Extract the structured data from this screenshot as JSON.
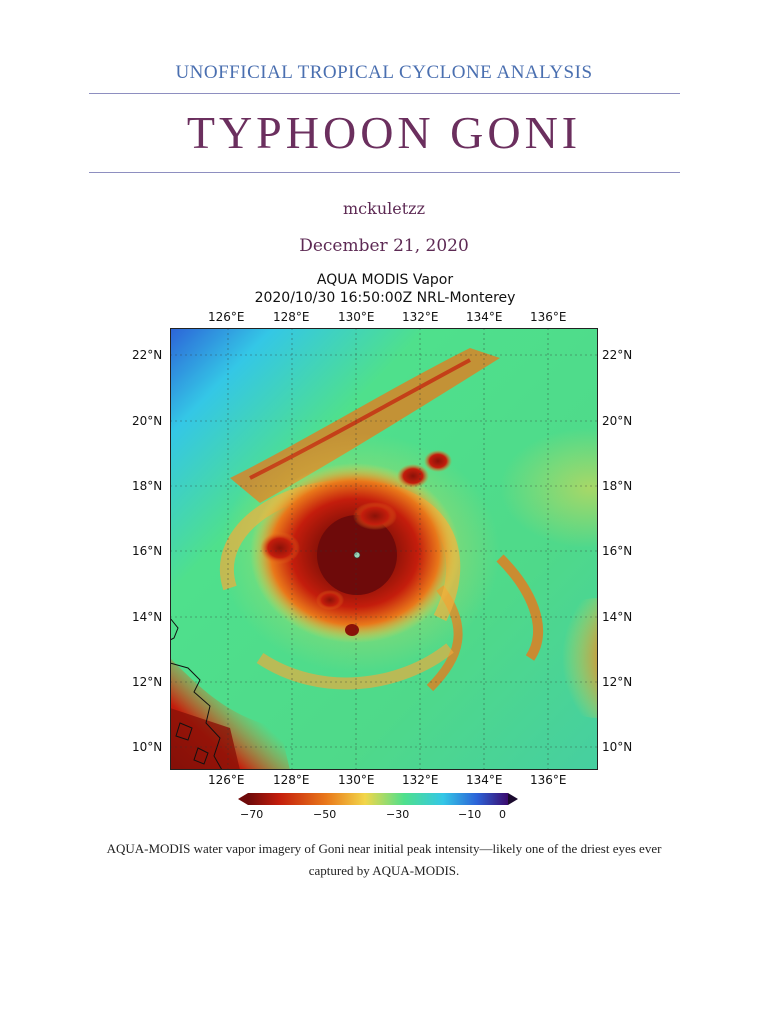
{
  "header": {
    "kicker": "UNOFFICIAL TROPICAL CYCLONE ANALYSIS",
    "title": "TYPHOON GONI",
    "author": "mckuletzz",
    "date": "December 21, 2020"
  },
  "figure": {
    "title_line1": "AQUA MODIS Vapor",
    "title_line2": "2020/10/30 16:50:00Z NRL-Monterey",
    "lon_ticks": [
      "126°E",
      "128°E",
      "130°E",
      "132°E",
      "134°E",
      "136°E"
    ],
    "lat_ticks": [
      "22°N",
      "20°N",
      "18°N",
      "16°N",
      "14°N",
      "12°N",
      "10°N"
    ],
    "colorbar_labels": [
      "−70",
      "−50",
      "−30",
      "−10",
      "0"
    ],
    "colors": {
      "deep": "#6e0a0a",
      "red": "#c41d0c",
      "orange": "#e9781a",
      "yellow": "#f2d64a",
      "green": "#4fe08c",
      "cyan": "#34c7e6",
      "blue": "#2c63d8",
      "purple": "#3b0b6e"
    }
  },
  "caption": "AQUA-MODIS water vapor imagery of Goni near initial peak intensity—likely one of the driest eyes ever captured by AQUA-MODIS."
}
